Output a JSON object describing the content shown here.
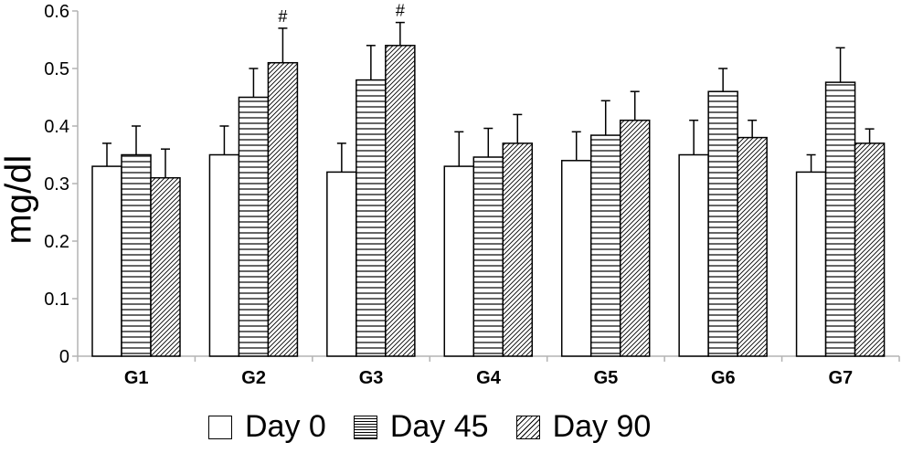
{
  "chart_data": {
    "type": "bar",
    "title": "",
    "xlabel": "",
    "ylabel": "mg/dl",
    "ylim": [
      0,
      0.6
    ],
    "yticks": [
      "0",
      "0.1",
      "0.2",
      "0.3",
      "0.4",
      "0.5",
      "0.6"
    ],
    "grid": false,
    "legend_position": "bottom",
    "categories": [
      "G1",
      "G2",
      "G3",
      "G4",
      "G5",
      "G6",
      "G7"
    ],
    "series": [
      {
        "name": "Day 0",
        "pattern": "plain",
        "values": [
          0.33,
          0.35,
          0.32,
          0.33,
          0.34,
          0.35,
          0.32
        ],
        "errors": [
          0.04,
          0.05,
          0.05,
          0.06,
          0.05,
          0.06,
          0.03
        ]
      },
      {
        "name": "Day 45",
        "pattern": "horizontal",
        "values": [
          0.35,
          0.45,
          0.48,
          0.346,
          0.384,
          0.46,
          0.476
        ],
        "errors": [
          0.05,
          0.05,
          0.06,
          0.05,
          0.06,
          0.04,
          0.06
        ]
      },
      {
        "name": "Day 90",
        "pattern": "diagonal",
        "values": [
          0.31,
          0.51,
          0.54,
          0.37,
          0.41,
          0.38,
          0.37
        ],
        "errors": [
          0.05,
          0.06,
          0.04,
          0.05,
          0.05,
          0.03,
          0.025
        ]
      }
    ],
    "annotations": [
      {
        "text": "#",
        "category": "G2",
        "series": "Day 90"
      },
      {
        "text": "#",
        "category": "G3",
        "series": "Day 90"
      }
    ]
  },
  "legend": {
    "items": [
      "Day 0",
      "Day 45",
      "Day 90"
    ]
  }
}
